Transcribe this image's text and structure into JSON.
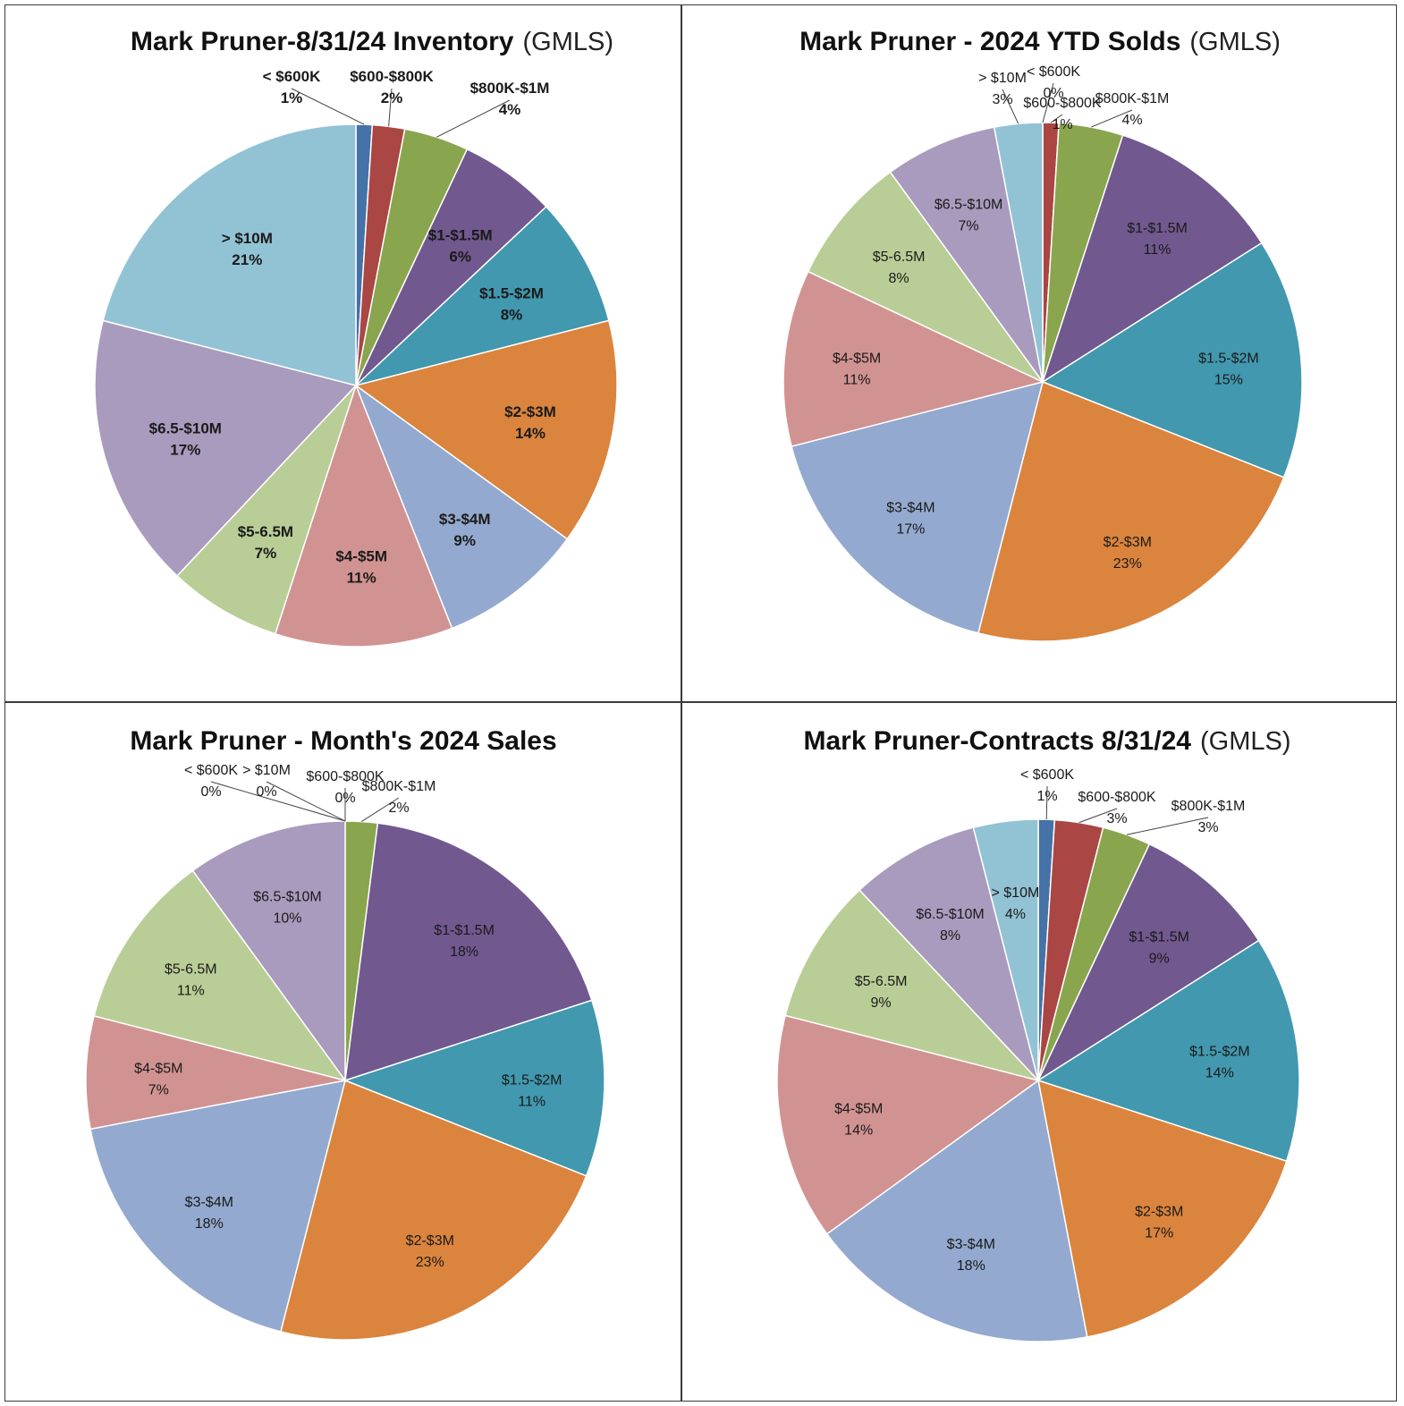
{
  "chart_data": [
    {
      "type": "pie",
      "title": "Mark Pruner-8/31/24 Inventory",
      "subtitle": "(GMLS)",
      "categories": [
        "< $600K",
        "$600-$800K",
        "$800K-$1M",
        "$1-$1.5M",
        "$1.5-$2M",
        "$2-$3M",
        "$3-$4M",
        "$4-$5M",
        "$5-6.5M",
        "$6.5-$10M",
        "> $10M"
      ],
      "values": [
        1,
        2,
        4,
        6,
        8,
        14,
        9,
        11,
        7,
        17,
        21
      ],
      "value_labels": [
        "1%",
        "2%",
        "4%",
        "6%",
        "8%",
        "14%",
        "9%",
        "11%",
        "7%",
        "17%",
        "21%"
      ],
      "colors": [
        "#4572a7",
        "#aa4643",
        "#89a54e",
        "#71588f",
        "#4198af",
        "#db843d",
        "#93a9cf",
        "#d19392",
        "#b9cd96",
        "#a99bbd",
        "#92c3d4"
      ]
    },
    {
      "type": "pie",
      "title": "Mark Pruner - 2024 YTD Solds",
      "subtitle": "(GMLS)",
      "categories": [
        "< $600K",
        "$600-$800K",
        "$800K-$1M",
        "$1-$1.5M",
        "$1.5-$2M",
        "$2-$3M",
        "$3-$4M",
        "$4-$5M",
        "$5-6.5M",
        "$6.5-$10M",
        "> $10M"
      ],
      "values": [
        0,
        1,
        4,
        11,
        15,
        23,
        17,
        11,
        8,
        7,
        3
      ],
      "value_labels": [
        "0%",
        "1%",
        "4%",
        "11%",
        "15%",
        "23%",
        "17%",
        "11%",
        "8%",
        "7%",
        "3%"
      ],
      "colors": [
        "#4572a7",
        "#aa4643",
        "#89a54e",
        "#71588f",
        "#4198af",
        "#db843d",
        "#93a9cf",
        "#d19392",
        "#b9cd96",
        "#a99bbd",
        "#92c3d4"
      ]
    },
    {
      "type": "pie",
      "title": "Mark Pruner - Month's 2024 Sales",
      "subtitle": "",
      "categories": [
        "< $600K",
        "$600-$800K",
        "$800K-$1M",
        "$1-$1.5M",
        "$1.5-$2M",
        "$2-$3M",
        "$3-$4M",
        "$4-$5M",
        "$5-6.5M",
        "$6.5-$10M",
        "> $10M"
      ],
      "values": [
        0,
        0,
        2,
        18,
        11,
        23,
        18,
        7,
        11,
        10,
        0
      ],
      "value_labels": [
        "0%",
        "0%",
        "2%",
        "18%",
        "11%",
        "23%",
        "18%",
        "7%",
        "11%",
        "10%",
        "0%"
      ],
      "colors": [
        "#4572a7",
        "#aa4643",
        "#89a54e",
        "#71588f",
        "#4198af",
        "#db843d",
        "#93a9cf",
        "#d19392",
        "#b9cd96",
        "#a99bbd",
        "#92c3d4"
      ]
    },
    {
      "type": "pie",
      "title": "Mark Pruner-Contracts 8/31/24",
      "subtitle": "(GMLS)",
      "categories": [
        "< $600K",
        "$600-$800K",
        "$800K-$1M",
        "$1-$1.5M",
        "$1.5-$2M",
        "$2-$3M",
        "$3-$4M",
        "$4-$5M",
        "$5-6.5M",
        "$6.5-$10M",
        "> $10M"
      ],
      "values": [
        1,
        3,
        3,
        9,
        14,
        17,
        18,
        14,
        9,
        8,
        4
      ],
      "value_labels": [
        "1%",
        "3%",
        "3%",
        "9%",
        "14%",
        "17%",
        "18%",
        "14%",
        "9%",
        "8%",
        "4%"
      ],
      "colors": [
        "#4572a7",
        "#aa4643",
        "#89a54e",
        "#71588f",
        "#4198af",
        "#db843d",
        "#93a9cf",
        "#d19392",
        "#b9cd96",
        "#a99bbd",
        "#92c3d4"
      ]
    }
  ]
}
